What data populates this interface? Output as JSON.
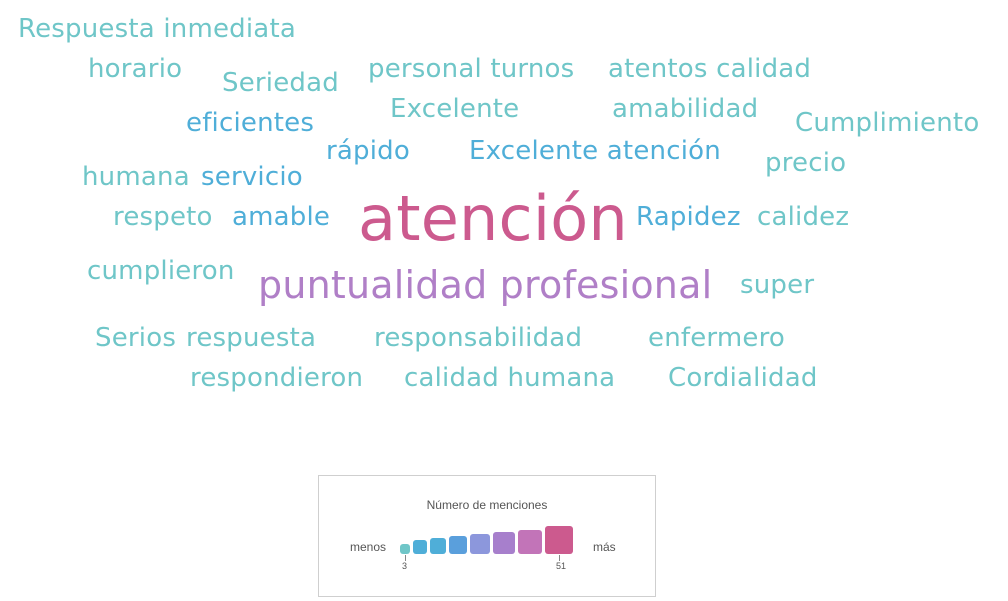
{
  "chart_data": {
    "type": "wordcloud",
    "words": [
      {
        "text": "atención",
        "count": 51,
        "color": "#cc5a8e"
      },
      {
        "text": "puntualidad profesional",
        "count": 27,
        "color": "#b07fc7"
      },
      {
        "text": "Respuesta inmediata",
        "count": 3,
        "color": "#6fc6c8"
      },
      {
        "text": "horario",
        "count": 3,
        "color": "#6fc6c8"
      },
      {
        "text": "Seriedad",
        "count": 3,
        "color": "#6fc6c8"
      },
      {
        "text": "personal turnos",
        "count": 3,
        "color": "#6fc6c8"
      },
      {
        "text": "atentos calidad",
        "count": 3,
        "color": "#6fc6c8"
      },
      {
        "text": "eficientes",
        "count": 6,
        "color": "#4faed8"
      },
      {
        "text": "Excelente",
        "count": 3,
        "color": "#6fc6c8"
      },
      {
        "text": "amabilidad",
        "count": 3,
        "color": "#6fc6c8"
      },
      {
        "text": "Cumplimiento",
        "count": 3,
        "color": "#6fc6c8"
      },
      {
        "text": "rápido",
        "count": 6,
        "color": "#4faed8"
      },
      {
        "text": "Excelente atención",
        "count": 6,
        "color": "#4faed8"
      },
      {
        "text": "humana",
        "count": 3,
        "color": "#6fc6c8"
      },
      {
        "text": "servicio",
        "count": 6,
        "color": "#4faed8"
      },
      {
        "text": "precio",
        "count": 3,
        "color": "#6fc6c8"
      },
      {
        "text": "respeto",
        "count": 3,
        "color": "#6fc6c8"
      },
      {
        "text": "amable",
        "count": 6,
        "color": "#4faed8"
      },
      {
        "text": "Rapidez",
        "count": 6,
        "color": "#4faed8"
      },
      {
        "text": "calidez",
        "count": 3,
        "color": "#6fc6c8"
      },
      {
        "text": "cumplieron",
        "count": 3,
        "color": "#6fc6c8"
      },
      {
        "text": "super",
        "count": 3,
        "color": "#6fc6c8"
      },
      {
        "text": "Serios",
        "count": 3,
        "color": "#6fc6c8"
      },
      {
        "text": "respuesta",
        "count": 3,
        "color": "#6fc6c8"
      },
      {
        "text": "responsabilidad",
        "count": 3,
        "color": "#6fc6c8"
      },
      {
        "text": "enfermero",
        "count": 3,
        "color": "#6fc6c8"
      },
      {
        "text": "respondieron",
        "count": 3,
        "color": "#6fc6c8"
      },
      {
        "text": "calidad humana",
        "count": 3,
        "color": "#6fc6c8"
      },
      {
        "text": "Cordialidad",
        "count": 3,
        "color": "#6fc6c8"
      }
    ],
    "legend": {
      "title": "Número de menciones",
      "min_label": "menos",
      "max_label": "más",
      "min_value": "3",
      "max_value": "51",
      "colors": [
        "#6fc6c8",
        "#4faed8",
        "#4faed8",
        "#5a9fdc",
        "#8c97dc",
        "#a77fcc",
        "#c274b8",
        "#cc5a8e"
      ]
    }
  }
}
